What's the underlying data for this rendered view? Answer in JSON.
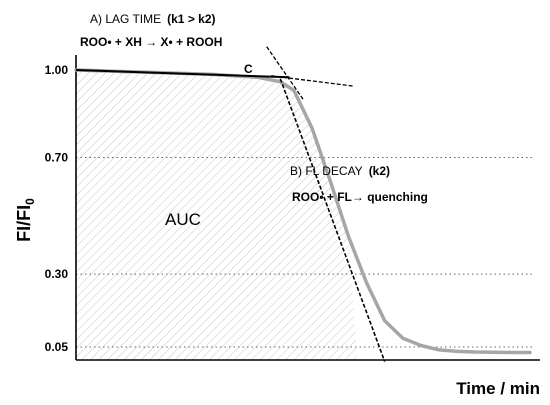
{
  "chart_data": {
    "type": "line",
    "xlabel": "Time / min",
    "ylabel": "FI/FI",
    "ylabel_subscript": "0",
    "ylim": [
      0,
      1.1
    ],
    "y_ticks": [
      {
        "value": 1.0,
        "label": "1.00"
      },
      {
        "value": 0.7,
        "label": "0.70"
      },
      {
        "value": 0.3,
        "label": "0.30"
      },
      {
        "value": 0.05,
        "label": "0.05"
      }
    ],
    "xlim": [
      0,
      100
    ],
    "grid": "dotted horizontal at 0.70, 0.30, 0.05",
    "series": [
      {
        "color": "#a6a6a6",
        "x": [
          0,
          10,
          20,
          30,
          40,
          45,
          48,
          52,
          56,
          60,
          64,
          68,
          72,
          76,
          80,
          84,
          88,
          92,
          96,
          100
        ],
        "y": [
          1.0,
          0.995,
          0.99,
          0.985,
          0.975,
          0.96,
          0.93,
          0.8,
          0.62,
          0.43,
          0.27,
          0.14,
          0.08,
          0.055,
          0.04,
          0.035,
          0.033,
          0.032,
          0.031,
          0.031
        ]
      }
    ],
    "lag_line": {
      "x": [
        0,
        47
      ],
      "y": [
        1.0,
        0.975
      ],
      "color": "#000000"
    },
    "decay_line": {
      "x": [
        45,
        68
      ],
      "y": [
        0.97,
        0.0
      ],
      "color": "#000000"
    },
    "tangent_lag_ext": {
      "x": [
        43,
        61
      ],
      "y": [
        0.98,
        0.945
      ]
    },
    "tangent_decay_ext": {
      "x": [
        42,
        50
      ],
      "y": [
        1.08,
        0.9
      ]
    },
    "area": {
      "x_from": 0,
      "x_to": 62,
      "fill": "hatched grey",
      "label": "AUC"
    },
    "annotations": {
      "lag": {
        "prefix": "A) LAG TIME",
        "bold": "(k1 > k2)"
      },
      "lag_eq": "ROO• + XH → X• + ROOH",
      "point_c": "C",
      "decay": {
        "prefix": "B) FL DECAY",
        "bold": "(k2)"
      },
      "decay_eq": "ROO• + FL→ quenching"
    }
  }
}
